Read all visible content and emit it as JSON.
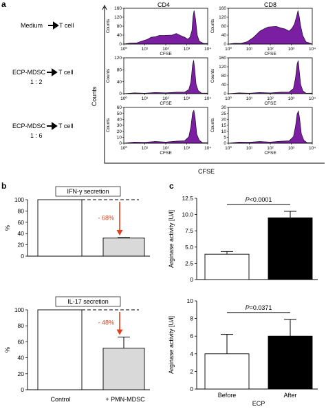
{
  "panel_labels": {
    "a": "a",
    "b": "b",
    "c": "c"
  },
  "panel_a": {
    "column_headers": [
      "CD4",
      "CD8"
    ],
    "rows": [
      {
        "label_lines": [
          "Medium",
          "T cell"
        ],
        "arrow": true
      },
      {
        "label_lines": [
          "ECP-MDSC",
          "T cell",
          "1 : 2"
        ],
        "arrow": true
      },
      {
        "label_lines": [
          "ECP-MDSC",
          "T cell",
          "1 : 6"
        ],
        "arrow": true
      }
    ],
    "outer_ylabel": "Counts",
    "outer_xlabel": "CFSE",
    "hist_ylabel": "Counts",
    "hist_xlabel": "CFSE",
    "x_tick_labels": [
      "10⁰",
      "10¹",
      "10²",
      "10³",
      "10⁴"
    ],
    "fill_color": "#7a1fa2"
  },
  "chart_data": [
    {
      "type": "area",
      "title": "CD4",
      "row": "Medium → T cell",
      "xlabel": "CFSE",
      "ylabel": "Counts",
      "x_scale": "log",
      "xlim": [
        1,
        10000
      ],
      "ylim": [
        0,
        160
      ],
      "yticks": [
        0,
        40,
        80,
        120,
        160
      ],
      "x_decades": [
        0,
        0.3,
        0.6,
        0.9,
        1.1,
        1.3,
        1.5,
        1.7,
        1.9,
        2.1,
        2.3,
        2.5,
        2.7,
        2.9,
        3.05,
        3.15,
        3.25,
        3.3,
        3.35,
        3.42,
        3.5,
        3.6,
        3.8,
        4.0
      ],
      "y": [
        0,
        2,
        5,
        12,
        20,
        28,
        33,
        36,
        38,
        37,
        40,
        45,
        38,
        28,
        22,
        28,
        60,
        120,
        150,
        110,
        40,
        10,
        3,
        0
      ]
    },
    {
      "type": "area",
      "title": "CD8",
      "row": "Medium → T cell",
      "xlabel": "CFSE",
      "ylabel": "Counts",
      "x_scale": "log",
      "xlim": [
        1,
        10000
      ],
      "ylim": [
        0,
        160
      ],
      "yticks": [
        0,
        40,
        80,
        120,
        160
      ],
      "x_decades": [
        0,
        0.3,
        0.6,
        0.9,
        1.2,
        1.5,
        1.7,
        1.9,
        2.1,
        2.3,
        2.5,
        2.7,
        2.9,
        3.05,
        3.15,
        3.25,
        3.32,
        3.38,
        3.45,
        3.55,
        3.7,
        3.85,
        4.0
      ],
      "y": [
        0,
        1,
        3,
        8,
        30,
        55,
        68,
        74,
        78,
        76,
        72,
        65,
        58,
        70,
        90,
        120,
        150,
        120,
        80,
        35,
        10,
        3,
        0
      ]
    },
    {
      "type": "area",
      "title": "CD4",
      "row": "ECP-MDSC → T cell 1 : 2",
      "xlabel": "CFSE",
      "ylabel": "Counts",
      "x_scale": "log",
      "xlim": [
        1,
        10000
      ],
      "ylim": [
        0,
        120
      ],
      "yticks": [
        0,
        40,
        80,
        120
      ],
      "x_decades": [
        0,
        0.5,
        1.0,
        1.5,
        2.0,
        2.5,
        2.9,
        3.1,
        3.2,
        3.28,
        3.33,
        3.38,
        3.45,
        3.55,
        3.7,
        4.0
      ],
      "y": [
        0,
        1,
        1.5,
        2,
        2.5,
        3,
        5,
        12,
        40,
        95,
        112,
        80,
        30,
        8,
        2,
        0
      ]
    },
    {
      "type": "area",
      "title": "CD8",
      "row": "ECP-MDSC → T cell 1 : 2",
      "xlabel": "CFSE",
      "ylabel": "Counts",
      "x_scale": "log",
      "xlim": [
        1,
        10000
      ],
      "ylim": [
        0,
        160
      ],
      "yticks": [
        0,
        40,
        80,
        120,
        160
      ],
      "x_decades": [
        0,
        0.5,
        1.0,
        1.5,
        2.0,
        2.5,
        2.9,
        3.1,
        3.2,
        3.28,
        3.33,
        3.38,
        3.45,
        3.55,
        3.7,
        4.0
      ],
      "y": [
        0,
        1,
        2,
        2.5,
        3,
        4,
        7,
        20,
        70,
        130,
        148,
        100,
        40,
        10,
        2,
        0
      ]
    },
    {
      "type": "area",
      "title": "CD4",
      "row": "ECP-MDSC → T cell 1 : 6",
      "xlabel": "CFSE",
      "ylabel": "Counts",
      "x_scale": "log",
      "xlim": [
        1,
        10000
      ],
      "ylim": [
        0,
        60
      ],
      "yticks": [
        0,
        10,
        20,
        30,
        40,
        50,
        60
      ],
      "x_decades": [
        0,
        0.5,
        1.0,
        1.5,
        2.0,
        2.5,
        2.9,
        3.1,
        3.2,
        3.28,
        3.34,
        3.4,
        3.48,
        3.6,
        3.75,
        4.0
      ],
      "y": [
        0,
        1,
        1.5,
        2,
        2,
        2.5,
        4,
        10,
        28,
        50,
        55,
        42,
        15,
        4,
        1,
        0
      ]
    },
    {
      "type": "area",
      "title": "CD8",
      "row": "ECP-MDSC → T cell 1 : 6",
      "xlabel": "CFSE",
      "ylabel": "Counts",
      "x_scale": "log",
      "xlim": [
        1,
        10000
      ],
      "ylim": [
        0,
        30
      ],
      "yticks": [
        0,
        5,
        10,
        15,
        20,
        25,
        30
      ],
      "x_decades": [
        0,
        0.5,
        1.0,
        1.5,
        2.0,
        2.5,
        2.9,
        3.1,
        3.2,
        3.28,
        3.34,
        3.4,
        3.48,
        3.6,
        3.75,
        4.0
      ],
      "y": [
        0,
        0.5,
        0.8,
        1,
        1,
        1.2,
        2,
        5,
        14,
        24,
        27,
        20,
        8,
        2,
        0.5,
        0
      ]
    },
    {
      "type": "bar",
      "title": "IFN-γ secretion",
      "categories": [
        "Control",
        "+ PMN-MDSC"
      ],
      "values": [
        100,
        32
      ],
      "errors": [
        0,
        1
      ],
      "ylabel": "%",
      "ylim": [
        0,
        100
      ],
      "yticks": [
        0,
        20,
        40,
        60,
        80,
        100
      ],
      "annotation": "- 68%",
      "bar_colors": [
        "#ffffff",
        "#d9d9d9"
      ]
    },
    {
      "type": "bar",
      "title": "IL-17 secretion",
      "categories": [
        "Control",
        "+ PMN-MDSC"
      ],
      "values": [
        100,
        52
      ],
      "errors": [
        0,
        14
      ],
      "ylabel": "%",
      "ylim": [
        0,
        100
      ],
      "yticks": [
        0,
        20,
        40,
        60,
        80,
        100
      ],
      "annotation": "- 48%",
      "bar_colors": [
        "#ffffff",
        "#d9d9d9"
      ]
    },
    {
      "type": "bar",
      "categories": [
        "Before",
        "After"
      ],
      "values": [
        3.9,
        9.5
      ],
      "errors": [
        0.4,
        1.0
      ],
      "ylabel": "Arginase activity [U/l]",
      "ylim": [
        0,
        12.5
      ],
      "yticks": [
        0,
        2.5,
        5.0,
        7.5,
        10.0,
        12.5
      ],
      "ytick_labels": [
        "0",
        "2.5",
        "5.0",
        "7.5",
        "10.0",
        "12.5"
      ],
      "annotation": "P<0.0001",
      "bar_colors": [
        "#ffffff",
        "#000000"
      ]
    },
    {
      "type": "bar",
      "categories": [
        "Before",
        "After"
      ],
      "values": [
        4.0,
        6.0
      ],
      "errors": [
        2.2,
        1.9
      ],
      "ylabel": "Arginase activity [U/l]",
      "xlabel": "ECP",
      "ylim": [
        0,
        10
      ],
      "yticks": [
        0,
        2,
        4,
        6,
        8,
        10
      ],
      "annotation": "P=0.0371",
      "bar_colors": [
        "#ffffff",
        "#000000"
      ]
    }
  ],
  "colors": {
    "annotation_red": "#e0401c",
    "arrow_red": "#e0401c",
    "histogram_fill": "#7a1fa2"
  }
}
